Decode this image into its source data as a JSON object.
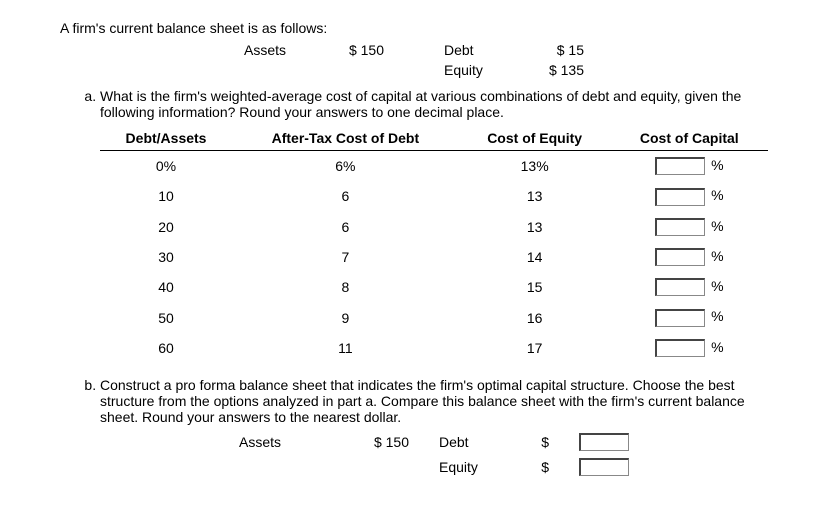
{
  "intro": "A firm's current balance sheet is as follows:",
  "current_bs": {
    "assets_label": "Assets",
    "assets_value": "$ 150",
    "debt_label": "Debt",
    "debt_value": "$  15",
    "equity_label": "Equity",
    "equity_value": "$ 135"
  },
  "part_a": {
    "text": "What is the firm's weighted-average cost of capital at various combinations of debt and equity, given the following information? Round your answers to one decimal place.",
    "headers": {
      "c1": "Debt/Assets",
      "c2": "After-Tax Cost of Debt",
      "c3": "Cost of Equity",
      "c4": "Cost of Capital"
    },
    "rows": [
      {
        "da": "0%",
        "atcd": "6%",
        "ce": "13%"
      },
      {
        "da": "10",
        "atcd": "6",
        "ce": "13"
      },
      {
        "da": "20",
        "atcd": "6",
        "ce": "13"
      },
      {
        "da": "30",
        "atcd": "7",
        "ce": "14"
      },
      {
        "da": "40",
        "atcd": "8",
        "ce": "15"
      },
      {
        "da": "50",
        "atcd": "9",
        "ce": "16"
      },
      {
        "da": "60",
        "atcd": "11",
        "ce": "17"
      }
    ],
    "pct": "%"
  },
  "part_b": {
    "text": "Construct a pro forma balance sheet that indicates the firm's optimal capital structure. Choose the best structure from the options analyzed in part a. Compare this balance sheet with the firm's current balance sheet. Round your answers to the nearest dollar.",
    "assets_label": "Assets",
    "assets_value": "$ 150",
    "debt_label": "Debt",
    "equity_label": "Equity",
    "dollar": "$"
  }
}
